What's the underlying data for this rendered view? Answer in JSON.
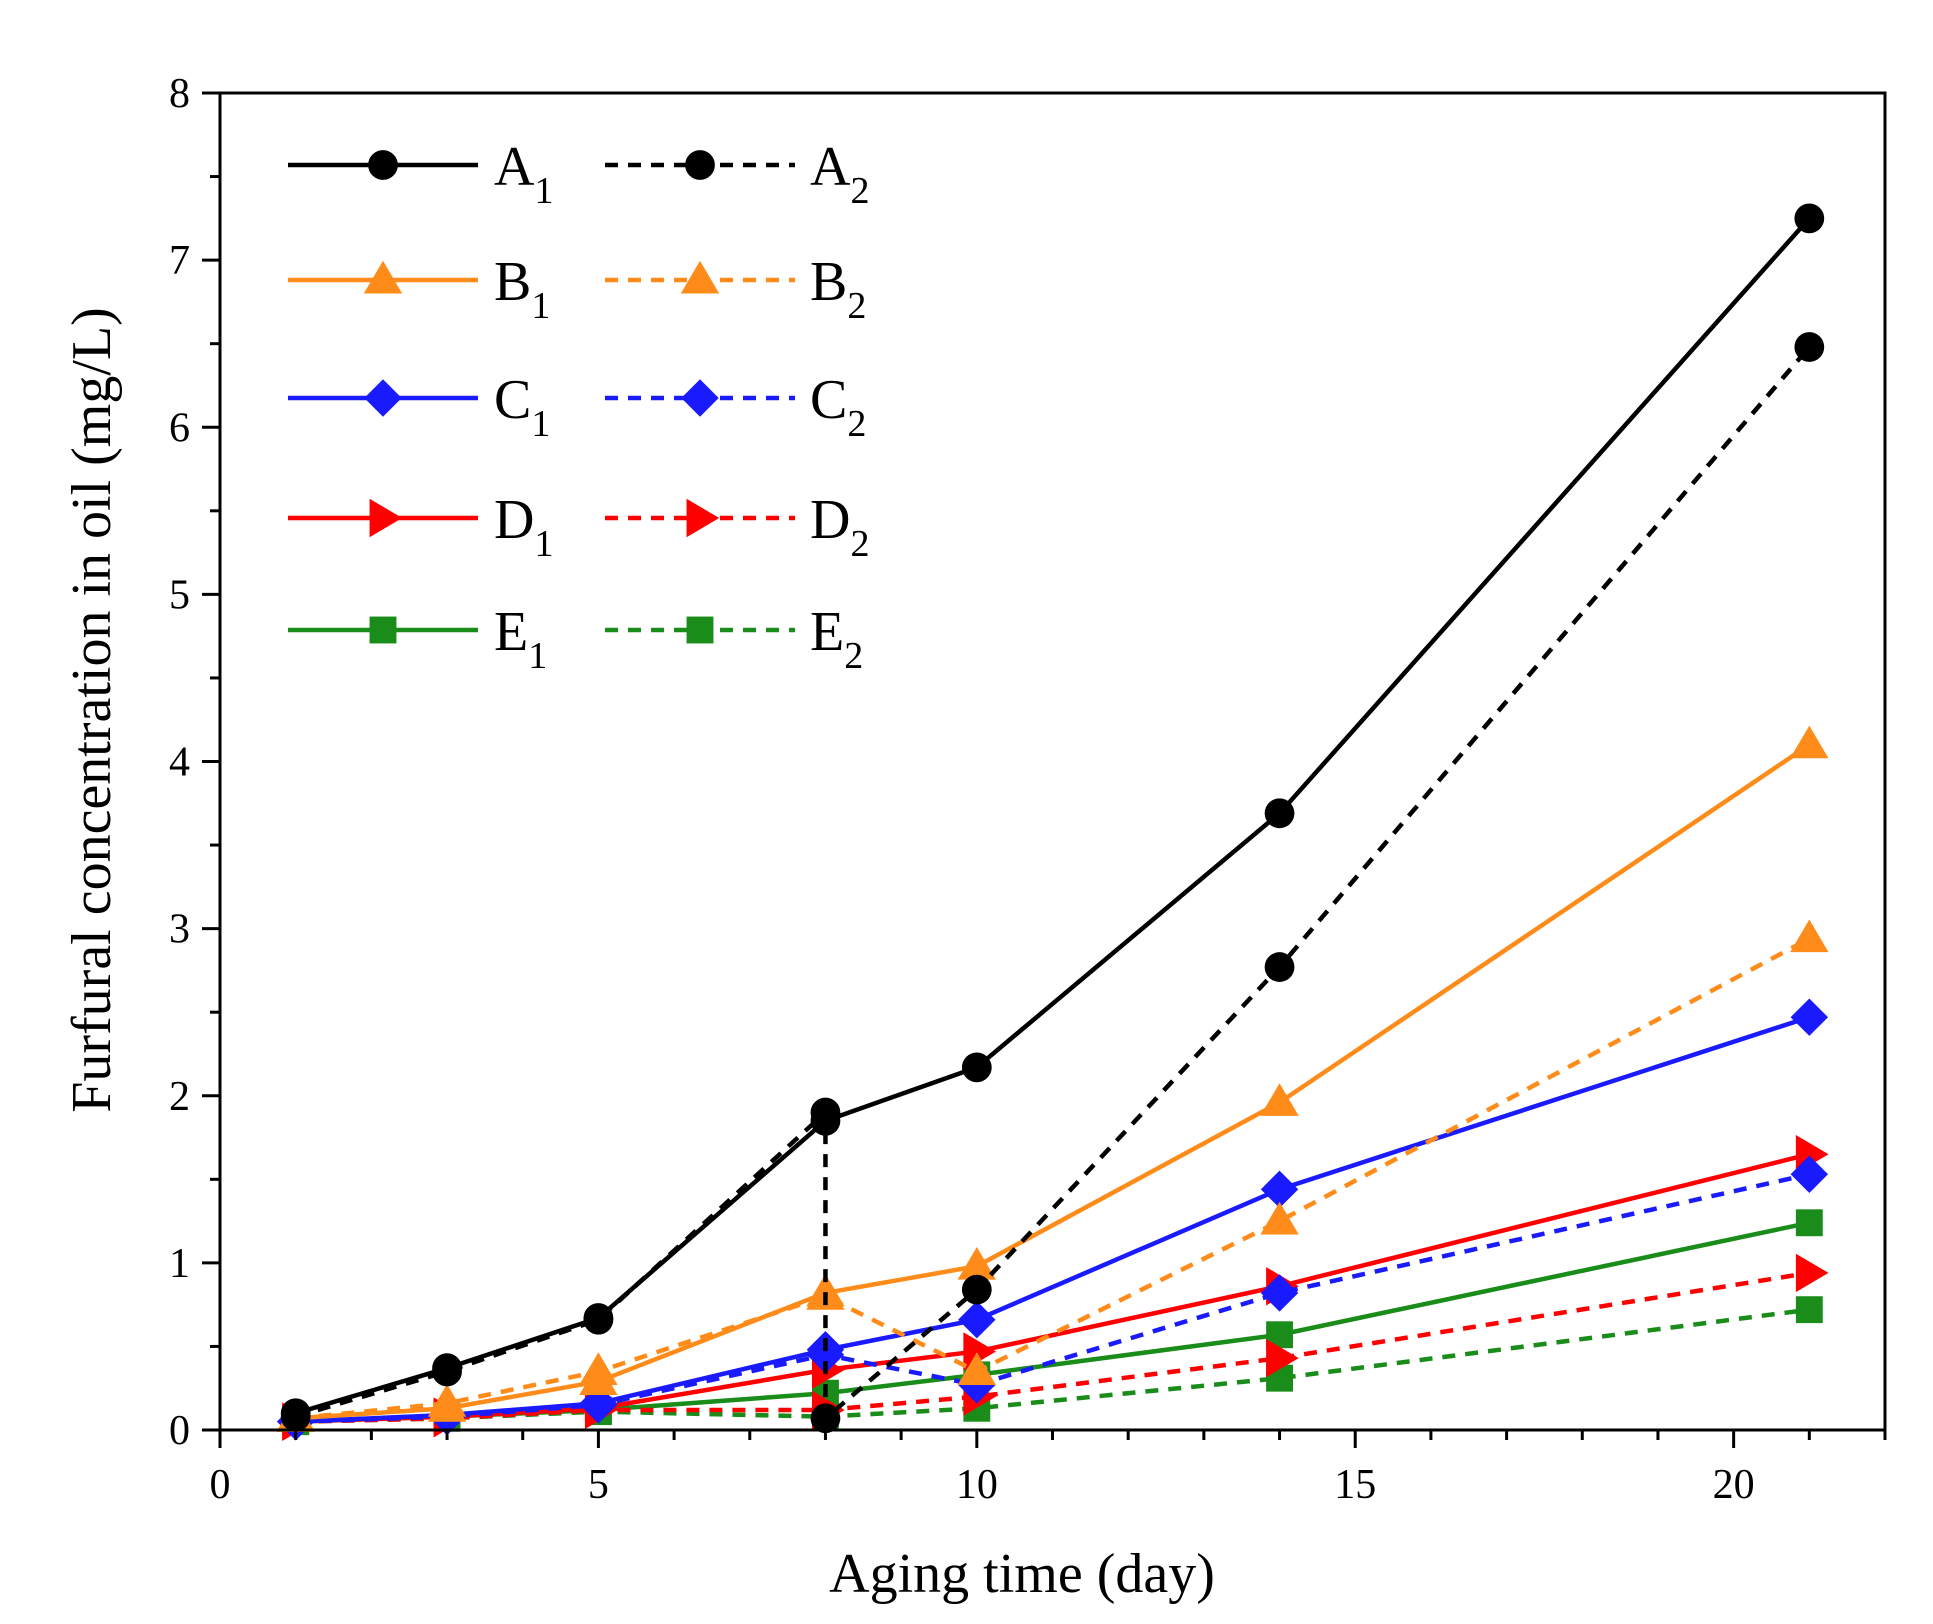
{
  "chart_data": {
    "type": "line",
    "title": "",
    "xlabel": "Aging time (day)",
    "ylabel": "Furfural concentration in oil (mg/L)",
    "xlim": [
      0,
      22
    ],
    "ylim": [
      0,
      8
    ],
    "xticks": [
      0,
      5,
      10,
      15,
      20
    ],
    "yticks": [
      0,
      1,
      2,
      3,
      4,
      5,
      6,
      7,
      8
    ],
    "grid": false,
    "legend_position": "top-left",
    "series": [
      {
        "name": "A",
        "sub": "1",
        "color": "#000000",
        "marker": "circle",
        "dash": "solid",
        "x": [
          1,
          3,
          5,
          8,
          10,
          14,
          21
        ],
        "values": [
          0.1,
          0.37,
          0.67,
          1.85,
          2.17,
          3.69,
          7.25
        ]
      },
      {
        "name": "A",
        "sub": "2",
        "color": "#000000",
        "marker": "circle",
        "dash": "dashed",
        "x": [
          1,
          3,
          5,
          8,
          8,
          10,
          14,
          21
        ],
        "values": [
          0.08,
          0.35,
          0.66,
          1.9,
          0.07,
          0.84,
          2.77,
          6.48
        ]
      },
      {
        "name": "B",
        "sub": "1",
        "color": "#ff8c1a",
        "marker": "triangle-up",
        "dash": "solid",
        "x": [
          1,
          3,
          5,
          8,
          10,
          14,
          21
        ],
        "values": [
          0.07,
          0.13,
          0.29,
          0.82,
          0.98,
          1.96,
          4.1
        ]
      },
      {
        "name": "B",
        "sub": "2",
        "color": "#ff8c1a",
        "marker": "triangle-up",
        "dash": "dashed",
        "x": [
          1,
          3,
          5,
          8,
          10,
          14,
          21
        ],
        "values": [
          0.07,
          0.16,
          0.35,
          0.8,
          0.35,
          1.25,
          2.94
        ]
      },
      {
        "name": "C",
        "sub": "1",
        "color": "#1a1aff",
        "marker": "diamond",
        "dash": "solid",
        "x": [
          1,
          3,
          5,
          8,
          10,
          14,
          21
        ],
        "values": [
          0.05,
          0.09,
          0.16,
          0.48,
          0.66,
          1.44,
          2.47
        ]
      },
      {
        "name": "C",
        "sub": "2",
        "color": "#1a1aff",
        "marker": "diamond",
        "dash": "dashed",
        "x": [
          1,
          3,
          5,
          8,
          10,
          14,
          21
        ],
        "values": [
          0.05,
          0.08,
          0.15,
          0.45,
          0.27,
          0.82,
          1.53
        ]
      },
      {
        "name": "D",
        "sub": "1",
        "color": "#ff0000",
        "marker": "triangle-right",
        "dash": "solid",
        "x": [
          1,
          3,
          5,
          8,
          10,
          14,
          21
        ],
        "values": [
          0.05,
          0.08,
          0.13,
          0.36,
          0.47,
          0.86,
          1.65
        ]
      },
      {
        "name": "D",
        "sub": "2",
        "color": "#ff0000",
        "marker": "triangle-right",
        "dash": "dashed",
        "x": [
          1,
          3,
          5,
          8,
          10,
          14,
          21
        ],
        "values": [
          0.05,
          0.07,
          0.12,
          0.12,
          0.2,
          0.43,
          0.94
        ]
      },
      {
        "name": "E",
        "sub": "1",
        "color": "#1a8c1a",
        "marker": "square",
        "dash": "solid",
        "x": [
          1,
          3,
          5,
          8,
          10,
          14,
          21
        ],
        "values": [
          0.05,
          0.08,
          0.12,
          0.22,
          0.33,
          0.57,
          1.24
        ]
      },
      {
        "name": "E",
        "sub": "2",
        "color": "#1a8c1a",
        "marker": "square",
        "dash": "dashed",
        "x": [
          1,
          3,
          5,
          8,
          10,
          14,
          21
        ],
        "values": [
          0.05,
          0.07,
          0.11,
          0.08,
          0.13,
          0.31,
          0.72
        ]
      }
    ]
  }
}
